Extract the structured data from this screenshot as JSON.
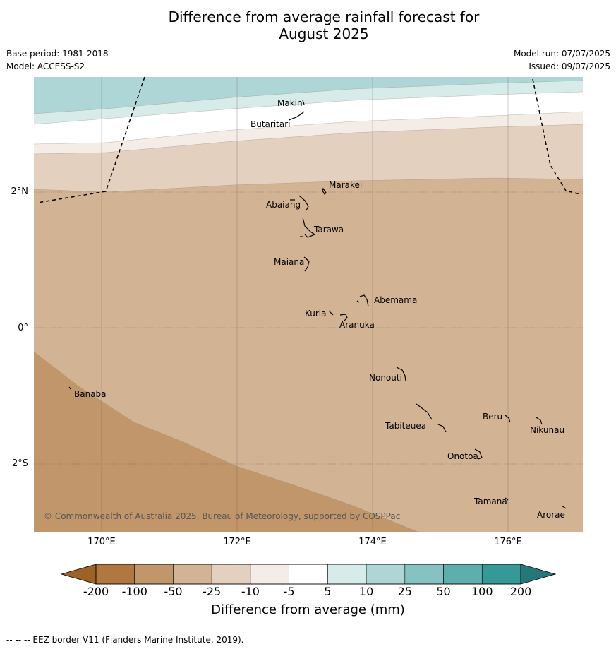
{
  "title_line1": "Difference from average rainfall forecast for",
  "title_line2": "August 2025",
  "meta_left": {
    "base_period": "Base period: 1981-2018",
    "model": "Model: ACCESS-S2"
  },
  "meta_right": {
    "model_run": "Model run: 07/07/2025",
    "issued": "Issued: 09/07/2025"
  },
  "lat_labels": [
    "2°N",
    "0°",
    "2°S"
  ],
  "lon_labels": [
    "170°E",
    "172°E",
    "174°E",
    "176°E"
  ],
  "islands": [
    {
      "name": "Makin"
    },
    {
      "name": "Butaritari"
    },
    {
      "name": "Marakei"
    },
    {
      "name": "Abaiang"
    },
    {
      "name": "Tarawa"
    },
    {
      "name": "Maiana"
    },
    {
      "name": "Abemama"
    },
    {
      "name": "Kuria"
    },
    {
      "name": "Aranuka"
    },
    {
      "name": "Nonouti"
    },
    {
      "name": "Banaba"
    },
    {
      "name": "Beru"
    },
    {
      "name": "Tabiteuea"
    },
    {
      "name": "Nikunau"
    },
    {
      "name": "Onotoa"
    },
    {
      "name": "Tamana"
    },
    {
      "name": "Arorae"
    }
  ],
  "copyright": "© Commonwealth of Australia 2025, Bureau of Meteorology, supported by COSPPac",
  "colorbar": {
    "ticks": [
      "-200",
      "-100",
      "-50",
      "-25",
      "-10",
      "-5",
      "5",
      "10",
      "25",
      "50",
      "100",
      "200"
    ],
    "colors": [
      "#b07840",
      "#c1966b",
      "#d2b394",
      "#e3d0bf",
      "#f4ece6",
      "#ffffff",
      "#d6ebea",
      "#aed6d6",
      "#86c2c1",
      "#5daeac",
      "#359998"
    ],
    "under_color": "#9e6228",
    "over_color": "#267777",
    "label": "Difference from average (mm)"
  },
  "footnote": "--  --  -- EEZ border V11 (Flanders Marine Institute, 2019)."
}
